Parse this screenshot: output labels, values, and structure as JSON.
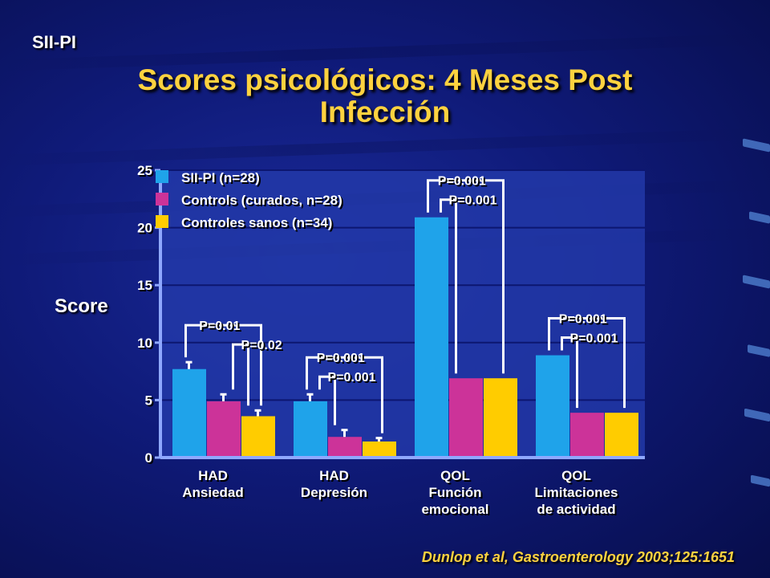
{
  "header": {
    "tag": "SII-PI",
    "title_line1": "Scores psicológicos: 4 Meses Post",
    "title_line2": "Infección"
  },
  "citation": "Dunlop et al, Gastroenterology 2003;125:1651",
  "colors": {
    "series1": "#1fa3ea",
    "series2": "#cc3399",
    "series3": "#ffcc00",
    "title": "#ffd23f"
  },
  "chart_data": {
    "type": "bar",
    "title": "",
    "ylabel": "Score",
    "ylim": [
      0,
      25
    ],
    "yticks": [
      0,
      5,
      10,
      15,
      20,
      25
    ],
    "grid": true,
    "legend": "top-left",
    "categories": [
      [
        "HAD",
        "Ansiedad"
      ],
      [
        "HAD",
        "Depresión"
      ],
      [
        "QOL",
        "Función",
        "emocional"
      ],
      [
        "QOL",
        "Limitaciones",
        "de actividad"
      ]
    ],
    "series": [
      {
        "name": "SII-PI (n=28)",
        "values": [
          7.7,
          4.9,
          20.9,
          8.9
        ],
        "errors": [
          0.6,
          0.6,
          null,
          null
        ]
      },
      {
        "name": "Controls (curados, n=28)",
        "values": [
          4.9,
          1.8,
          6.9,
          3.9
        ],
        "errors": [
          0.6,
          0.6,
          null,
          null
        ]
      },
      {
        "name": "Controles sanos (n=34)",
        "values": [
          3.6,
          1.4,
          6.9,
          3.9
        ],
        "errors": [
          0.5,
          0.3,
          null,
          null
        ]
      }
    ],
    "annotations": [
      {
        "group": 0,
        "label": "P=0.01",
        "from": 0,
        "to": 2
      },
      {
        "group": 0,
        "label": "P=0.02",
        "from": 1,
        "to": 2
      },
      {
        "group": 1,
        "label": "P=0.001",
        "from": 0,
        "to": 2
      },
      {
        "group": 1,
        "label": "P=0.001",
        "from": 0,
        "to": 1
      },
      {
        "group": 2,
        "label": "P=0.001",
        "from": 0,
        "to": 2
      },
      {
        "group": 2,
        "label": "P=0.001",
        "from": 0,
        "to": 1
      },
      {
        "group": 3,
        "label": "P=0.001",
        "from": 0,
        "to": 2
      },
      {
        "group": 3,
        "label": "P=0.001",
        "from": 0,
        "to": 1
      }
    ]
  }
}
